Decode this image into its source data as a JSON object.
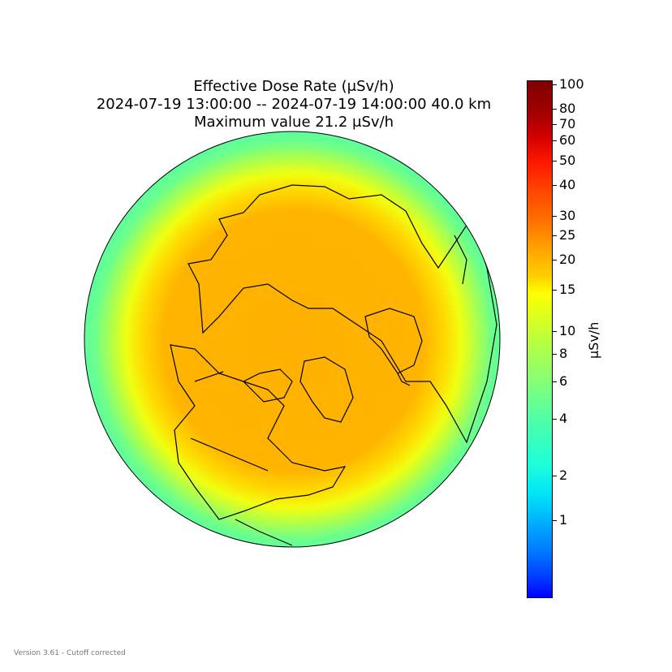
{
  "title": {
    "line1": "Effective Dose Rate (μSv/h)",
    "line2": "2024-07-19 13:00:00 -- 2024-07-19 14:00:00 40.0 km",
    "line3": "Maximum value 21.2 μSv/h"
  },
  "colorbar": {
    "label": "μSv/h",
    "ticks": [
      "100",
      "80",
      "70",
      "60",
      "50",
      "40",
      "30",
      "25",
      "20",
      "15",
      "10",
      "8",
      "6",
      "4",
      "2",
      "1"
    ],
    "colormap": "jet"
  },
  "map": {
    "projection": "north polar orthographic",
    "max_value": 21.2,
    "colors": {
      "center": "#ffb000",
      "mid": "#ffff00",
      "edge": "#5cff9c"
    }
  },
  "footer": {
    "version": "Version 3.61 - Cutoff corrected"
  }
}
